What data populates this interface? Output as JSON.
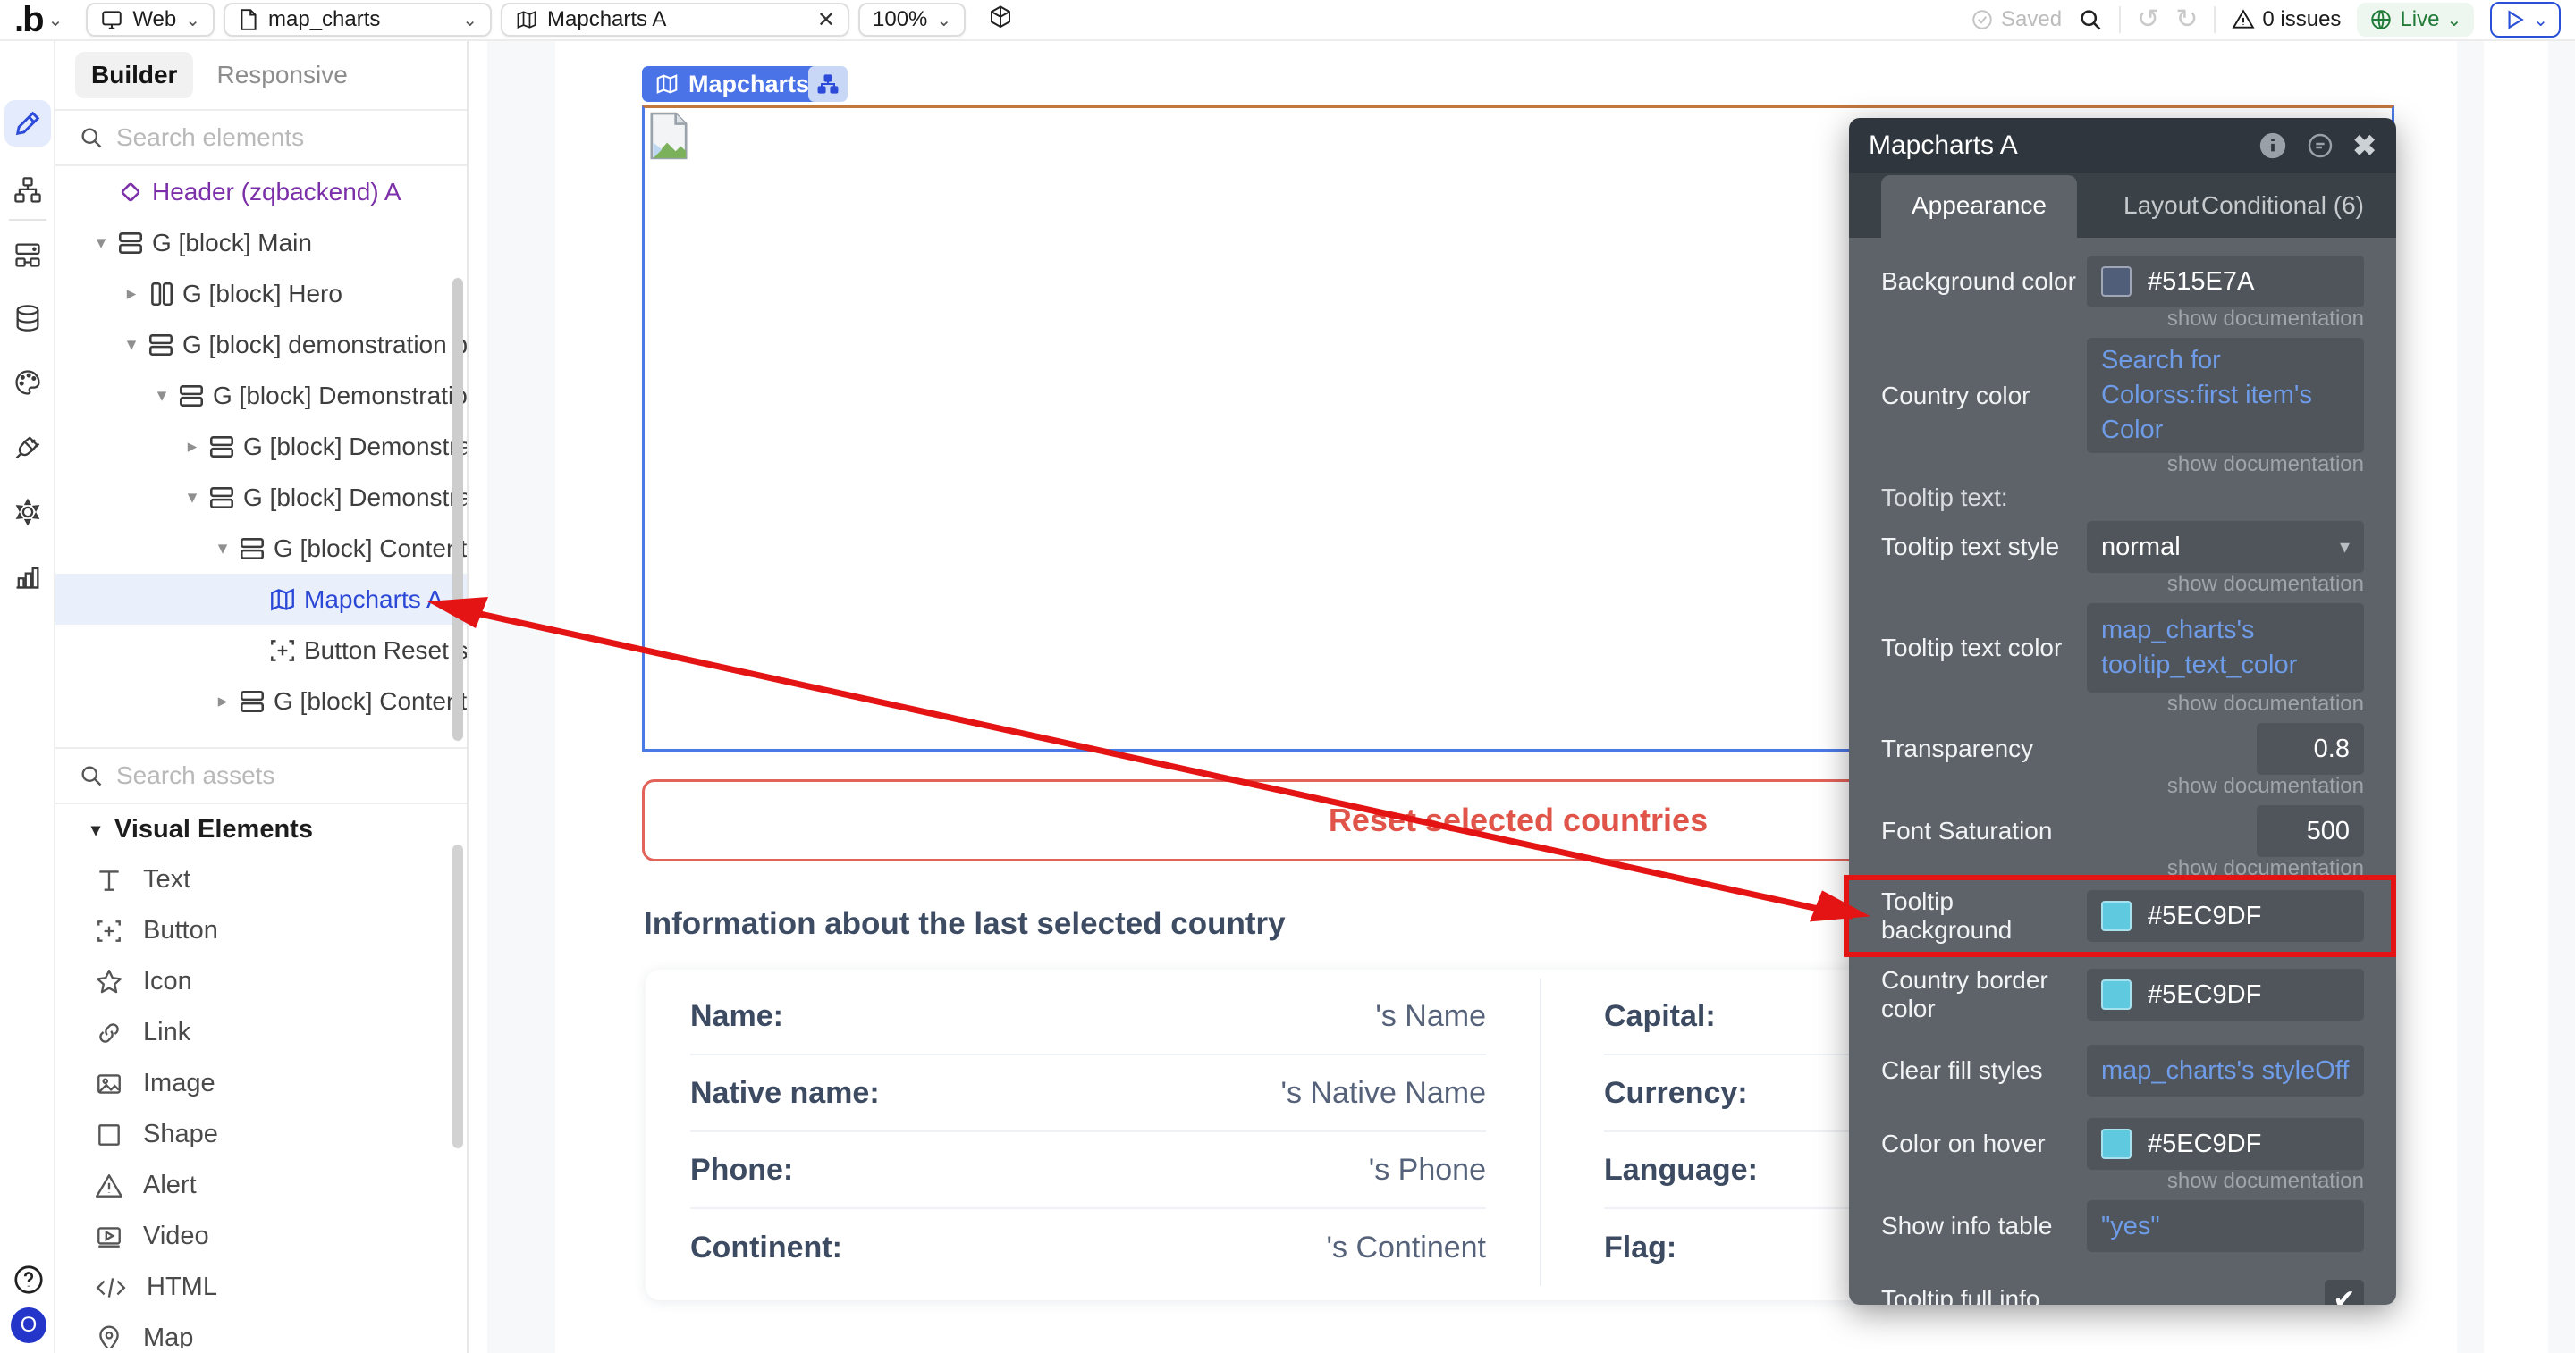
{
  "toolbar": {
    "logo_label": "b",
    "platform": {
      "label": "Web"
    },
    "page": {
      "label": "map_charts"
    },
    "element_tab": {
      "label": "Mapcharts A"
    },
    "zoom": {
      "label": "100%"
    },
    "saved_label": "Saved",
    "issues_label": "0 issues",
    "live_label": "Live"
  },
  "rail": {
    "items": [
      {
        "icon": "pencil-icon",
        "selected": true
      },
      {
        "icon": "workflow-icon",
        "selected": false
      },
      {
        "icon": "components-icon",
        "selected": false
      },
      {
        "icon": "database-icon",
        "selected": false
      },
      {
        "icon": "palette-icon",
        "selected": false
      },
      {
        "icon": "plugin-icon",
        "selected": false
      },
      {
        "icon": "gear-icon",
        "selected": false
      },
      {
        "icon": "chart-icon",
        "selected": false
      }
    ],
    "help_icon": "?",
    "avatar_label": "O"
  },
  "sidebar": {
    "tabs": {
      "builder": "Builder",
      "responsive": "Responsive"
    },
    "search_elements_placeholder": "Search elements",
    "tree": [
      {
        "label": "Header (zqbackend) A",
        "icon": "diamond",
        "chevron": "none",
        "depth": 0,
        "purple": true,
        "selected": false
      },
      {
        "label": "G [block] Main",
        "icon": "rows",
        "chevron": "down",
        "depth": 0,
        "purple": false,
        "selected": false
      },
      {
        "label": "G [block] Hero",
        "icon": "cols",
        "chevron": "right",
        "depth": 1,
        "purple": false,
        "selected": false
      },
      {
        "label": "G [block] demonstration bg",
        "icon": "rows",
        "chevron": "down",
        "depth": 1,
        "purple": false,
        "selected": false
      },
      {
        "label": "G [block] Demonstration",
        "icon": "rows",
        "chevron": "down",
        "depth": 2,
        "purple": false,
        "selected": false
      },
      {
        "label": "G [block] Demonstrati...",
        "icon": "rows",
        "chevron": "right",
        "depth": 3,
        "purple": false,
        "selected": false
      },
      {
        "label": "G [block] Demonstrati...",
        "icon": "rows",
        "chevron": "down",
        "depth": 3,
        "purple": false,
        "selected": false
      },
      {
        "label": "G [block] Content ...",
        "icon": "rows",
        "chevron": "down",
        "depth": 4,
        "purple": false,
        "selected": false
      },
      {
        "label": "Mapcharts A",
        "icon": "map",
        "chevron": "none",
        "depth": 5,
        "purple": false,
        "selected": true
      },
      {
        "label": "Button Reset s...",
        "icon": "button",
        "chevron": "none",
        "depth": 5,
        "purple": false,
        "selected": false
      },
      {
        "label": "G [block] Content ...",
        "icon": "rows",
        "chevron": "right",
        "depth": 4,
        "purple": false,
        "selected": false
      }
    ],
    "search_assets_placeholder": "Search assets",
    "visual_elements": {
      "header": "Visual Elements",
      "items": [
        {
          "icon": "text-icon",
          "label": "Text"
        },
        {
          "icon": "button-icon",
          "label": "Button"
        },
        {
          "icon": "star-icon",
          "label": "Icon"
        },
        {
          "icon": "link-icon",
          "label": "Link"
        },
        {
          "icon": "image-icon",
          "label": "Image"
        },
        {
          "icon": "shape-icon",
          "label": "Shape"
        },
        {
          "icon": "alert-icon",
          "label": "Alert"
        },
        {
          "icon": "video-icon",
          "label": "Video"
        },
        {
          "icon": "html-icon",
          "label": "HTML"
        },
        {
          "icon": "map-pin-icon",
          "label": "Map"
        }
      ]
    }
  },
  "canvas": {
    "selected_badge": "Mapcharts A",
    "reset_button": "Reset selected countries",
    "info_heading": "Information about the last selected country",
    "info_left": [
      {
        "label": "Name:",
        "value": "'s Name"
      },
      {
        "label": "Native name:",
        "value": "'s Native Name"
      },
      {
        "label": "Phone:",
        "value": "'s Phone"
      },
      {
        "label": "Continent:",
        "value": "'s Continent"
      }
    ],
    "info_right": [
      {
        "label": "Capital:",
        "value": ""
      },
      {
        "label": "Currency:",
        "value": ""
      },
      {
        "label": "Language:",
        "value": ""
      },
      {
        "label": "Flag:",
        "value": ""
      }
    ]
  },
  "panel": {
    "title": "Mapcharts A",
    "tabs": [
      "Appearance",
      "Layout",
      "Conditional (6)"
    ],
    "active_tab": "Appearance",
    "doc_label": "show documentation",
    "rows": [
      {
        "type": "color",
        "label": "Background color",
        "swatch": "#515E7A",
        "value": "#515E7A",
        "doc": true
      },
      {
        "type": "expr2",
        "label": "Country color",
        "value": "Search for Colorss:first item's Color",
        "doc": true
      },
      {
        "type": "section",
        "label": "Tooltip text:"
      },
      {
        "type": "dropdown",
        "label": "Tooltip text style",
        "value": "normal",
        "doc": true
      },
      {
        "type": "expr2",
        "label": "Tooltip text color",
        "value": "map_charts's tooltip_text_color",
        "doc": true
      },
      {
        "type": "number",
        "label": "Transparency",
        "value": "0.8",
        "doc": true
      },
      {
        "type": "number",
        "label": "Font Saturation",
        "value": "500",
        "doc": true
      },
      {
        "type": "color",
        "label": "Tooltip background",
        "swatch": "#5EC9DF",
        "value": "#5EC9DF",
        "doc": false,
        "highlight": true
      },
      {
        "type": "color",
        "label": "Country border color",
        "swatch": "#5EC9DF",
        "value": "#5EC9DF",
        "doc": false
      },
      {
        "type": "expr",
        "label": "Clear fill styles",
        "value": "map_charts's styleOff",
        "doc": false
      },
      {
        "type": "color",
        "label": "Color on hover",
        "swatch": "#5EC9DF",
        "value": "#5EC9DF",
        "doc": true
      },
      {
        "type": "expr",
        "label": "Show info table",
        "value": "\"yes\"",
        "doc": false
      },
      {
        "type": "checkbox",
        "label": "Tooltip full info",
        "checked": true,
        "doc": true
      }
    ]
  },
  "colors": {
    "accent_blue": "#2d4bd8",
    "selection_blue": "#2b48d6",
    "purple": "#7b2fa8",
    "annotation_red": "#e41414",
    "swatch_slate": "#515E7A",
    "swatch_cyan": "#5EC9DF",
    "live_green": "#217a38",
    "reset_red": "#e0544a"
  }
}
